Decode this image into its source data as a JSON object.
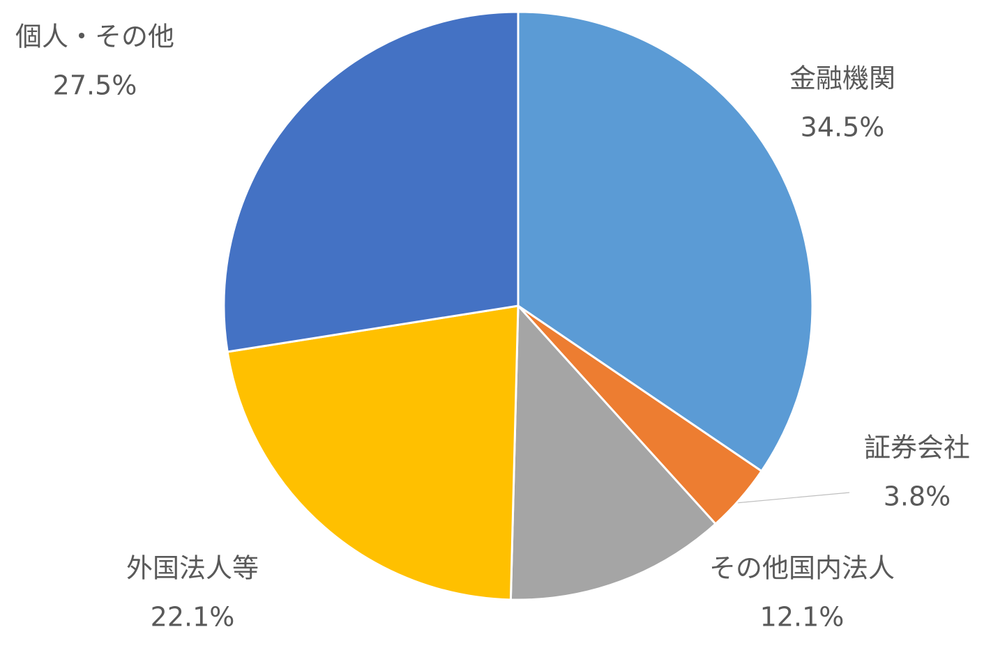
{
  "chart_data": {
    "type": "pie",
    "categories": [
      "金融機関",
      "証券会社",
      "その他国内法人",
      "外国法人等",
      "個人・その他"
    ],
    "values": [
      34.5,
      3.8,
      12.1,
      22.1,
      27.5
    ],
    "value_labels": [
      "34.5%",
      "3.8%",
      "12.1%",
      "22.1%",
      "27.5%"
    ],
    "colors": [
      "#5b9bd5",
      "#ed7d31",
      "#a5a5a5",
      "#ffc000",
      "#4472c4"
    ]
  }
}
